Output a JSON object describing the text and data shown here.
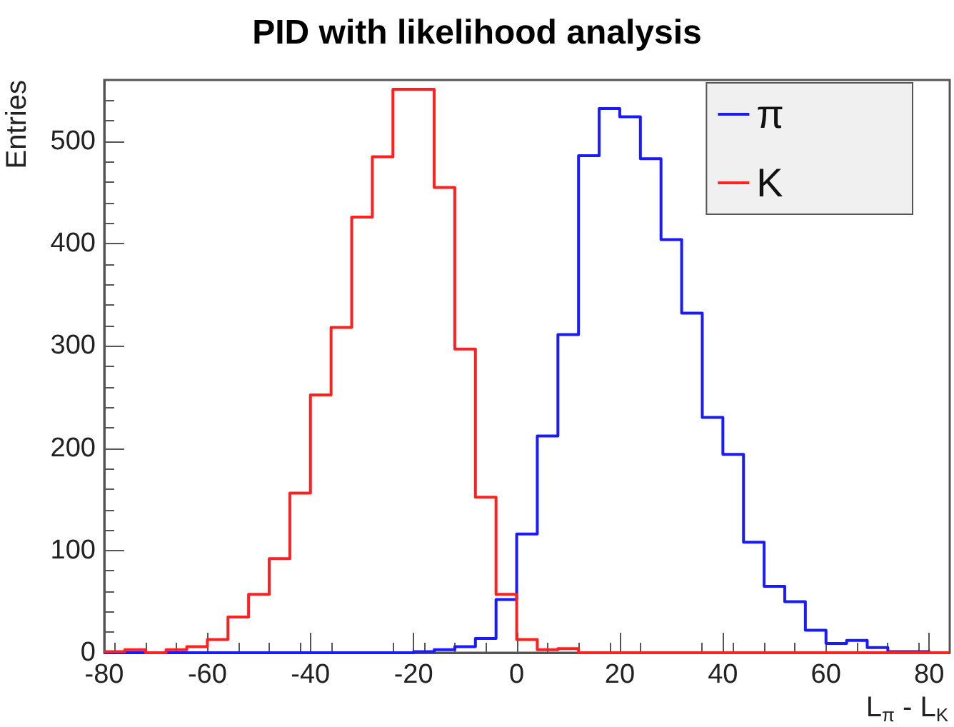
{
  "chart_data": {
    "type": "histogram",
    "title": "PID with likelihood analysis",
    "xlabel": "L$_{π}$ - L$_{K}$",
    "ylabel": "Entries",
    "bins": [
      -80,
      -76,
      -72,
      -68,
      -64,
      -60,
      -56,
      -52,
      -48,
      -44,
      -40,
      -36,
      -32,
      -28,
      -24,
      -20,
      -16,
      -12,
      -8,
      -4,
      0,
      4,
      8,
      12,
      16,
      20,
      24,
      28,
      32,
      36,
      40,
      44,
      48,
      52,
      56,
      60,
      64,
      68,
      72,
      76,
      80,
      84
    ],
    "series": [
      {
        "name": "π",
        "color": "#1a1aff",
        "values": [
          0,
          0,
          0,
          0,
          0,
          0,
          0,
          0,
          0,
          0,
          0,
          0,
          0,
          0,
          0,
          1,
          3,
          6,
          14,
          52,
          116,
          212,
          311,
          486,
          532,
          524,
          483,
          404,
          332,
          230,
          194,
          108,
          65,
          50,
          22,
          9,
          12,
          5,
          1,
          1,
          0
        ]
      },
      {
        "name": "K",
        "color": "#ff2020",
        "values": [
          1,
          3,
          0,
          3,
          6,
          13,
          35,
          57,
          92,
          156,
          252,
          318,
          426,
          485,
          551,
          551,
          455,
          297,
          152,
          57,
          13,
          3,
          4,
          0,
          0,
          0,
          0,
          0,
          0,
          0,
          0,
          0,
          0,
          0,
          0,
          0,
          0,
          0,
          0,
          0,
          0
        ]
      }
    ],
    "xlim": [
      -80,
      84
    ],
    "xticks": [
      -80,
      -60,
      -40,
      -20,
      0,
      20,
      40,
      60,
      80
    ],
    "ylim": [
      0,
      560
    ],
    "yticks": [
      0,
      100,
      200,
      300,
      400,
      500
    ],
    "grid": false,
    "legend": "top right"
  }
}
